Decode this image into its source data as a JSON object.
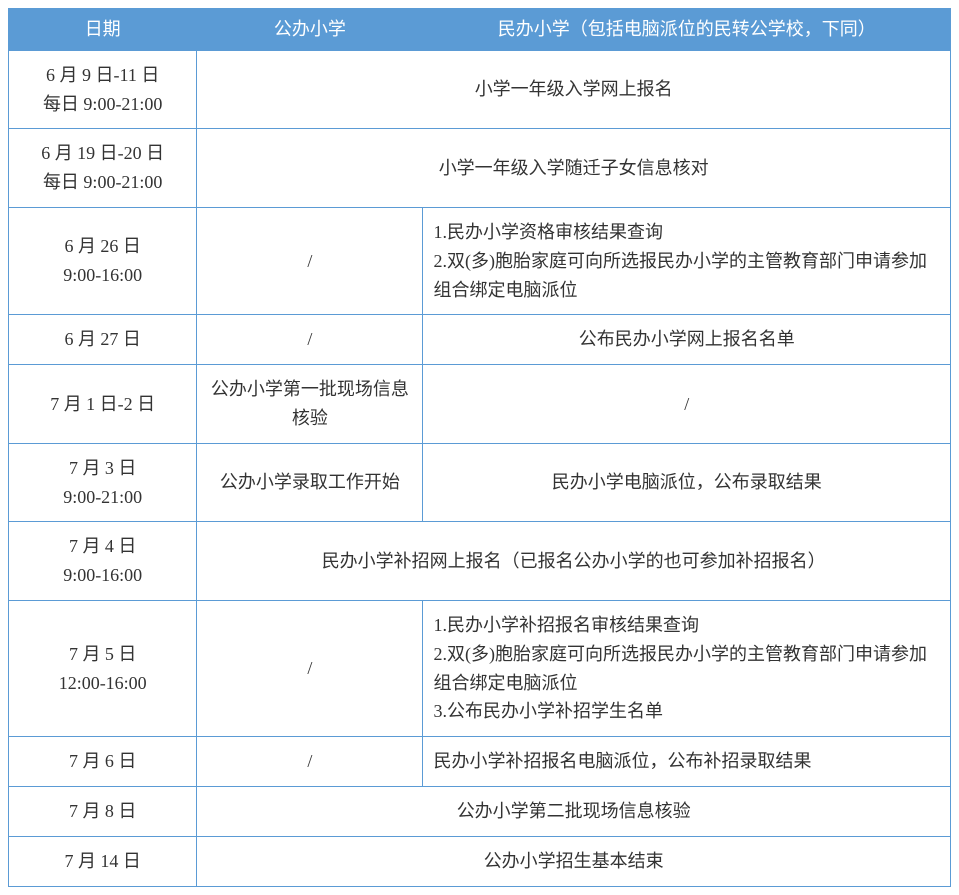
{
  "colors": {
    "header_bg": "#5b9bd5",
    "header_text": "#ffffff",
    "border": "#5b9bd5",
    "cell_text": "#333333",
    "background": "#ffffff"
  },
  "typography": {
    "font_family": "SimSun",
    "font_size_pt": 14,
    "line_height": 1.6
  },
  "columns": {
    "date": "日期",
    "public": "公办小学",
    "private": "民办小学（包括电脑派位的民转公学校，下同）"
  },
  "rows": [
    {
      "date_line1": "6 月 9 日-11 日",
      "date_line2": "每日 9:00-21:00",
      "merged": true,
      "merged_text": "小学一年级入学网上报名",
      "merged_align": "center"
    },
    {
      "date_line1": "6 月 19 日-20 日",
      "date_line2": "每日 9:00-21:00",
      "merged": true,
      "merged_text": "小学一年级入学随迁子女信息核对",
      "merged_align": "center"
    },
    {
      "date_line1": "6 月 26 日",
      "date_line2": "9:00-16:00",
      "public": "/",
      "private": "1.民办小学资格审核结果查询\n2.双(多)胞胎家庭可向所选报民办小学的主管教育部门申请参加组合绑定电脑派位",
      "private_align": "left"
    },
    {
      "date_line1": "6 月 27 日",
      "public": "/",
      "private": "公布民办小学网上报名名单",
      "private_align": "center"
    },
    {
      "date_line1": "7 月 1 日-2 日",
      "public": "公办小学第一批现场信息核验",
      "private": "/",
      "private_align": "center"
    },
    {
      "date_line1": "7 月 3 日",
      "date_line2": "9:00-21:00",
      "public": "公办小学录取工作开始",
      "private": "民办小学电脑派位，公布录取结果",
      "private_align": "center"
    },
    {
      "date_line1": "7 月 4 日",
      "date_line2": "9:00-16:00",
      "merged": true,
      "merged_text": "民办小学补招网上报名（已报名公办小学的也可参加补招报名）",
      "merged_align": "center"
    },
    {
      "date_line1": "7 月 5 日",
      "date_line2": "12:00-16:00",
      "public": "/",
      "private": "1.民办小学补招报名审核结果查询\n2.双(多)胞胎家庭可向所选报民办小学的主管教育部门申请参加组合绑定电脑派位\n3.公布民办小学补招学生名单",
      "private_align": "left"
    },
    {
      "date_line1": "7 月 6 日",
      "public": "/",
      "private": "民办小学补招报名电脑派位，公布补招录取结果",
      "private_align": "left"
    },
    {
      "date_line1": "7 月 8 日",
      "merged": true,
      "merged_text": "公办小学第二批现场信息核验",
      "merged_align": "center"
    },
    {
      "date_line1": "7 月 14 日",
      "merged": true,
      "merged_text": "公办小学招生基本结束",
      "merged_align": "center"
    }
  ]
}
